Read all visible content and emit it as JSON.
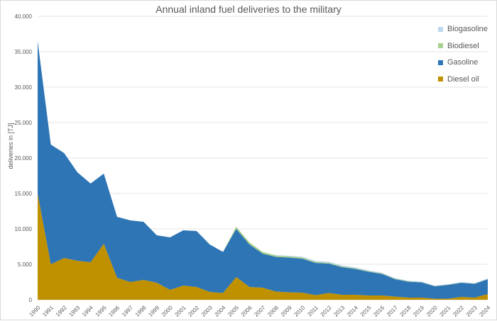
{
  "chart_data": {
    "type": "area",
    "stacked": true,
    "title": "Annual inland fuel deliveries to the military",
    "xlabel": "",
    "ylabel": "deliveries in [TJ]",
    "ylim": [
      0,
      40000
    ],
    "yticks": [
      "0",
      "5.000",
      "10.000",
      "15.000",
      "20.000",
      "25.000",
      "30.000",
      "35.000",
      "40.000"
    ],
    "grid": true,
    "legend_position": "top-right",
    "categories": [
      "1990",
      "1991",
      "1992",
      "1993",
      "1994",
      "1995",
      "1996",
      "1997",
      "1998",
      "1999",
      "2000",
      "2001",
      "2002",
      "2003",
      "2004",
      "2005",
      "2006",
      "2007",
      "2008",
      "2009",
      "2010",
      "2011",
      "2012",
      "2013",
      "2014",
      "2015",
      "2016",
      "2017",
      "2018",
      "2019",
      "2020",
      "2021",
      "2022",
      "2023",
      "2024"
    ],
    "series": [
      {
        "name": "Diesel oil",
        "color": "#BF9000",
        "values": [
          15000,
          5000,
          5900,
          5500,
          5300,
          7900,
          3100,
          2500,
          2800,
          2400,
          1400,
          2000,
          1800,
          1100,
          950,
          3200,
          1800,
          1700,
          1150,
          1050,
          1000,
          650,
          950,
          700,
          700,
          600,
          600,
          450,
          300,
          300,
          150,
          150,
          400,
          300,
          800
        ]
      },
      {
        "name": "Gasoline",
        "color": "#2E75B6",
        "values": [
          21500,
          16900,
          14800,
          12500,
          11100,
          9900,
          8600,
          8700,
          8200,
          6700,
          7400,
          7800,
          7900,
          6700,
          5800,
          6800,
          6000,
          4800,
          4900,
          4900,
          4800,
          4550,
          4150,
          3900,
          3650,
          3350,
          3050,
          2450,
          2250,
          2150,
          1750,
          1950,
          2000,
          1950,
          2100
        ]
      },
      {
        "name": "Biodiesel",
        "color": "#A9D18E",
        "values": [
          0,
          0,
          0,
          0,
          0,
          0,
          0,
          0,
          0,
          0,
          0,
          0,
          0,
          0,
          0,
          300,
          300,
          250,
          200,
          180,
          170,
          150,
          130,
          110,
          100,
          90,
          80,
          70,
          60,
          50,
          40,
          40,
          40,
          40,
          40
        ]
      },
      {
        "name": "Biogasoline",
        "color": "#BDD7EE",
        "values": [
          0,
          0,
          0,
          0,
          0,
          0,
          0,
          0,
          0,
          0,
          0,
          0,
          0,
          0,
          0,
          0,
          0,
          0,
          50,
          80,
          110,
          120,
          130,
          130,
          120,
          110,
          100,
          90,
          80,
          70,
          60,
          60,
          60,
          60,
          60
        ]
      }
    ]
  },
  "legend": [
    {
      "label": "Biogasoline",
      "color": "#BDD7EE"
    },
    {
      "label": "Biodiesel",
      "color": "#A9D18E"
    },
    {
      "label": "Gasoline",
      "color": "#2E75B6"
    },
    {
      "label": "Diesel oil",
      "color": "#BF9000"
    }
  ]
}
